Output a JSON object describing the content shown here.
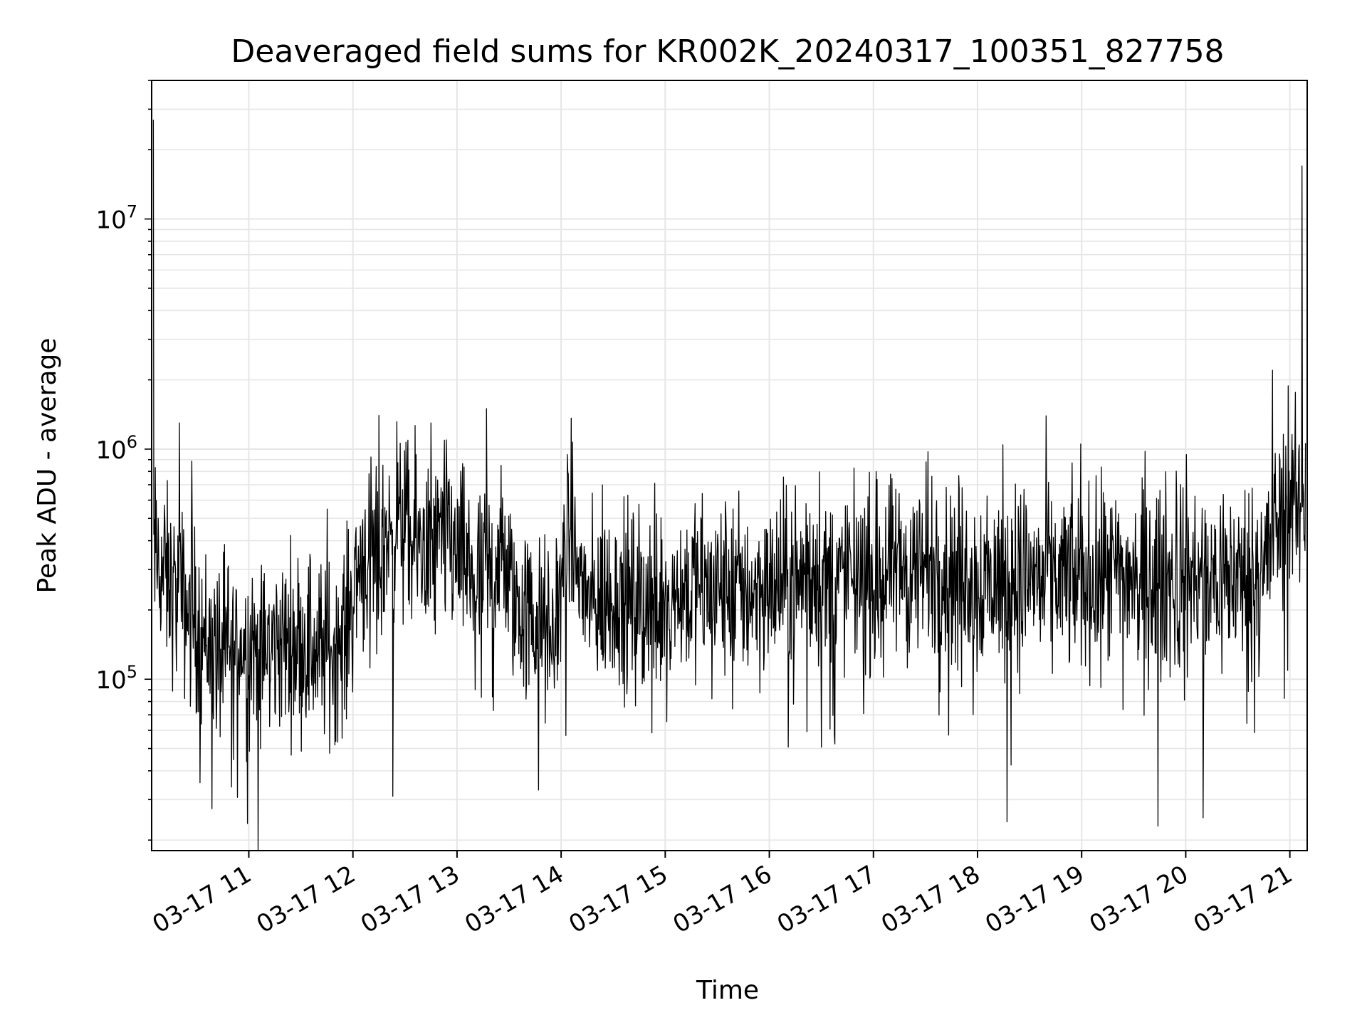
{
  "chart_data": {
    "type": "line",
    "title": "Deaveraged field sums for KR002K_20240317_100351_827758",
    "xlabel": "Time",
    "ylabel": "Peak ADU - average",
    "yscale": "log",
    "ylim": [
      18000,
      40000000
    ],
    "xlim": [
      "2024-03-17 10:04",
      "2024-03-17 21:10"
    ],
    "grid": true,
    "line_color": "#000000",
    "grid_color": "#e6e6e6",
    "x_tick_labels": [
      "03-17 11",
      "03-17 12",
      "03-17 13",
      "03-17 14",
      "03-17 15",
      "03-17 16",
      "03-17 17",
      "03-17 18",
      "03-17 19",
      "03-17 20",
      "03-17 21"
    ],
    "x_tick_times": [
      "2024-03-17 11:00",
      "2024-03-17 12:00",
      "2024-03-17 13:00",
      "2024-03-17 14:00",
      "2024-03-17 15:00",
      "2024-03-17 16:00",
      "2024-03-17 17:00",
      "2024-03-17 18:00",
      "2024-03-17 19:00",
      "2024-03-17 20:00",
      "2024-03-17 21:00"
    ],
    "y_tick_labels": [
      {
        "value": 100000,
        "base": "10",
        "exp": "5"
      },
      {
        "value": 1000000,
        "base": "10",
        "exp": "6"
      },
      {
        "value": 10000000,
        "base": "10",
        "exp": "7"
      }
    ],
    "series": [
      {
        "x": [
          "2024-03-17 10:05",
          "2024-03-17 10:15",
          "2024-03-17 10:25",
          "2024-03-17 10:35",
          "2024-03-17 10:45",
          "2024-03-17 10:55",
          "2024-03-17 11:05",
          "2024-03-17 11:15",
          "2024-03-17 11:25",
          "2024-03-17 11:35",
          "2024-03-17 11:45",
          "2024-03-17 11:55",
          "2024-03-17 12:05",
          "2024-03-17 12:15",
          "2024-03-17 12:25",
          "2024-03-17 12:35",
          "2024-03-17 12:45",
          "2024-03-17 12:55",
          "2024-03-17 13:05",
          "2024-03-17 13:15",
          "2024-03-17 13:25",
          "2024-03-17 13:35",
          "2024-03-17 13:45",
          "2024-03-17 13:55",
          "2024-03-17 14:05",
          "2024-03-17 14:15",
          "2024-03-17 14:25",
          "2024-03-17 14:35",
          "2024-03-17 14:45",
          "2024-03-17 14:55",
          "2024-03-17 15:05",
          "2024-03-17 15:15",
          "2024-03-17 15:25",
          "2024-03-17 15:35",
          "2024-03-17 15:45",
          "2024-03-17 15:55",
          "2024-03-17 16:05",
          "2024-03-17 16:15",
          "2024-03-17 16:25",
          "2024-03-17 16:35",
          "2024-03-17 16:45",
          "2024-03-17 16:55",
          "2024-03-17 17:05",
          "2024-03-17 17:15",
          "2024-03-17 17:25",
          "2024-03-17 17:35",
          "2024-03-17 17:45",
          "2024-03-17 17:55",
          "2024-03-17 18:05",
          "2024-03-17 18:15",
          "2024-03-17 18:25",
          "2024-03-17 18:35",
          "2024-03-17 18:45",
          "2024-03-17 18:55",
          "2024-03-17 19:05",
          "2024-03-17 19:15",
          "2024-03-17 19:25",
          "2024-03-17 19:35",
          "2024-03-17 19:45",
          "2024-03-17 19:55",
          "2024-03-17 20:05",
          "2024-03-17 20:15",
          "2024-03-17 20:25",
          "2024-03-17 20:35",
          "2024-03-17 20:45",
          "2024-03-17 20:55",
          "2024-03-17 21:05"
        ],
        "y": [
          350000,
          250000,
          200000,
          150000,
          120000,
          140000,
          130000,
          140000,
          150000,
          140000,
          130000,
          150000,
          350000,
          300000,
          500000,
          400000,
          350000,
          400000,
          300000,
          250000,
          350000,
          200000,
          180000,
          150000,
          450000,
          200000,
          220000,
          230000,
          220000,
          230000,
          240000,
          250000,
          240000,
          250000,
          240000,
          250000,
          260000,
          250000,
          270000,
          260000,
          280000,
          270000,
          280000,
          290000,
          300000,
          280000,
          300000,
          280000,
          260000,
          270000,
          280000,
          270000,
          280000,
          270000,
          270000,
          280000,
          270000,
          260000,
          270000,
          260000,
          270000,
          280000,
          270000,
          280000,
          300000,
          550000,
          600000
        ]
      }
    ],
    "spikes": [
      {
        "x": "2024-03-17 10:05",
        "y": 27000000
      },
      {
        "x": "2024-03-17 10:20",
        "y": 1300000
      },
      {
        "x": "2024-03-17 12:15",
        "y": 1400000
      },
      {
        "x": "2024-03-17 12:45",
        "y": 1300000
      },
      {
        "x": "2024-03-17 13:17",
        "y": 1500000
      },
      {
        "x": "2024-03-17 20:50",
        "y": 2200000
      },
      {
        "x": "2024-03-17 21:07",
        "y": 17000000
      }
    ],
    "dips": [
      {
        "x": "2024-03-17 10:50",
        "y": 34000
      },
      {
        "x": "2024-03-17 12:23",
        "y": 31000
      },
      {
        "x": "2024-03-17 13:47",
        "y": 33000
      },
      {
        "x": "2024-03-17 18:17",
        "y": 24000
      },
      {
        "x": "2024-03-17 19:44",
        "y": 23000
      },
      {
        "x": "2024-03-17 20:10",
        "y": 25000
      }
    ]
  }
}
